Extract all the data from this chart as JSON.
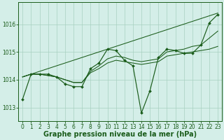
{
  "background_color": "#d4eee8",
  "grid_color": "#a8d0c0",
  "line_color": "#1a5c1a",
  "xlabel": "Graphe pression niveau de la mer (hPa)",
  "xlabel_fontsize": 7,
  "tick_fontsize": 5.5,
  "ylim": [
    1012.5,
    1016.8
  ],
  "yticks": [
    1013,
    1014,
    1015,
    1016
  ],
  "xlim": [
    -0.5,
    23.5
  ],
  "xticks": [
    0,
    1,
    2,
    3,
    4,
    5,
    6,
    7,
    8,
    9,
    10,
    11,
    12,
    13,
    14,
    15,
    16,
    17,
    18,
    19,
    20,
    21,
    22,
    23
  ],
  "series_main": [
    1013.3,
    1014.2,
    1014.2,
    1014.2,
    1014.1,
    1013.85,
    1013.75,
    1013.75,
    1014.4,
    1014.6,
    1015.1,
    1015.05,
    1014.7,
    1014.5,
    1012.8,
    1013.6,
    1014.8,
    1015.1,
    1015.05,
    1014.95,
    1014.95,
    1015.25,
    1016.05,
    1016.35
  ],
  "series_flat1": [
    1014.1,
    1014.2,
    1014.2,
    1014.15,
    1014.1,
    1014.0,
    1013.9,
    1013.9,
    1014.25,
    1014.4,
    1014.6,
    1014.7,
    1014.65,
    1014.6,
    1014.55,
    1014.6,
    1014.65,
    1014.85,
    1014.9,
    1014.95,
    1015.0,
    1015.05,
    1015.1,
    1015.2
  ],
  "series_flat2": [
    1014.1,
    1014.2,
    1014.2,
    1014.15,
    1014.1,
    1014.0,
    1013.9,
    1013.9,
    1014.3,
    1014.5,
    1014.75,
    1014.85,
    1014.8,
    1014.7,
    1014.65,
    1014.7,
    1014.75,
    1015.0,
    1015.05,
    1015.1,
    1015.2,
    1015.25,
    1015.5,
    1015.75
  ],
  "series_diagonal": [
    1014.1,
    1014.2,
    1014.3,
    1014.4,
    1014.5,
    1014.6,
    1014.7,
    1014.8,
    1014.9,
    1015.0,
    1015.1,
    1015.2,
    1015.3,
    1015.4,
    1015.5,
    1015.6,
    1015.7,
    1015.8,
    1015.9,
    1016.0,
    1016.1,
    1016.2,
    1016.3,
    1016.4
  ]
}
